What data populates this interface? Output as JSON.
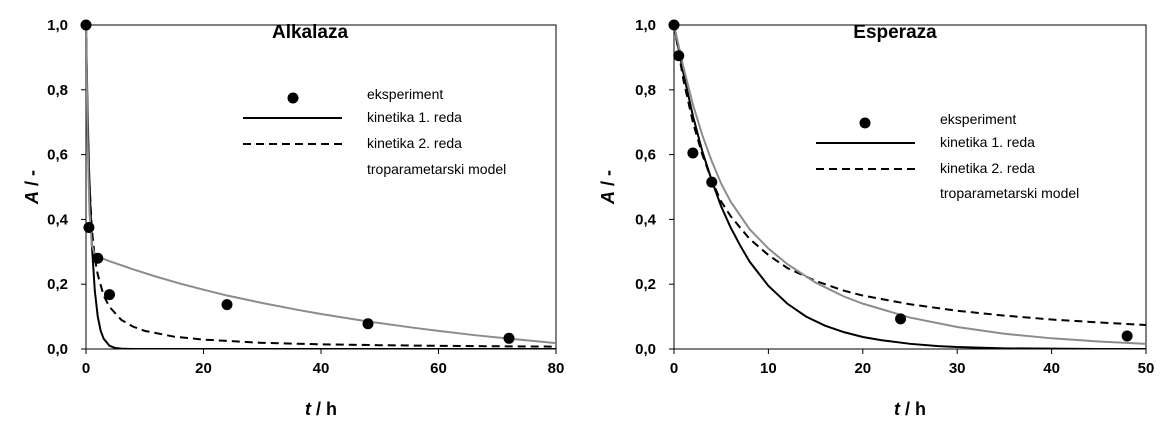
{
  "chart_data": [
    {
      "type": "line",
      "title": "Alkalaza",
      "xlabel_var": "t",
      "xlabel_unit": " / h",
      "ylabel_var": "A",
      "ylabel_unit": " / -",
      "xlim": [
        0,
        80
      ],
      "ylim": [
        0,
        1.0
      ],
      "xticks": [
        0,
        20,
        40,
        60,
        80
      ],
      "yticks": [
        "0,0",
        "0,2",
        "0,4",
        "0,6",
        "0,8",
        "1,0"
      ],
      "ytick_values": [
        0,
        0.2,
        0.4,
        0.6,
        0.8,
        1.0
      ],
      "legend": [
        "eksperiment",
        "kinetika 1. reda",
        "kinetika 2. reda",
        "troparametarski model"
      ],
      "series": [
        {
          "kind": "experiment",
          "style": "marker",
          "color": "#000000",
          "x": [
            0,
            0.5,
            2,
            4,
            24,
            48,
            72
          ],
          "y": [
            1.0,
            0.375,
            0.28,
            0.168,
            0.137,
            0.078,
            0.033
          ]
        },
        {
          "kind": "first-order",
          "style": "solid",
          "color": "#000000",
          "x": [
            0,
            0.25,
            0.5,
            1,
            1.5,
            2,
            2.5,
            3,
            4,
            5,
            6,
            8,
            80
          ],
          "y": [
            1.0,
            0.75,
            0.56,
            0.32,
            0.18,
            0.1,
            0.056,
            0.032,
            0.01,
            0.003,
            0.001,
            0,
            0
          ]
        },
        {
          "kind": "second-order",
          "style": "dashed",
          "color": "#000000",
          "x": [
            0,
            0.25,
            0.5,
            1,
            1.5,
            2,
            3,
            4,
            6,
            8,
            10,
            15,
            20,
            30,
            40,
            50,
            60,
            70,
            80
          ],
          "y": [
            1.0,
            0.7,
            0.54,
            0.37,
            0.28,
            0.23,
            0.165,
            0.13,
            0.09,
            0.069,
            0.056,
            0.038,
            0.029,
            0.019,
            0.0145,
            0.0117,
            0.0098,
            0.0084,
            0.0073
          ]
        },
        {
          "kind": "three-parameter",
          "style": "solid",
          "color": "#8c8c8c",
          "x": [
            0,
            0.3,
            0.6,
            1,
            1.5,
            2,
            4,
            8,
            12,
            16,
            20,
            24,
            30,
            36,
            40,
            48,
            56,
            60,
            66,
            72,
            80
          ],
          "y": [
            1.0,
            0.62,
            0.42,
            0.32,
            0.292,
            0.285,
            0.271,
            0.246,
            0.223,
            0.202,
            0.183,
            0.165,
            0.142,
            0.121,
            0.108,
            0.085,
            0.065,
            0.056,
            0.043,
            0.032,
            0.018
          ]
        }
      ]
    },
    {
      "type": "line",
      "title": "Esperaza",
      "xlabel_var": "t",
      "xlabel_unit": " / h",
      "ylabel_var": "A",
      "ylabel_unit": " / -",
      "xlim": [
        0,
        50
      ],
      "ylim": [
        0,
        1.0
      ],
      "xticks": [
        0,
        10,
        20,
        30,
        40,
        50
      ],
      "yticks": [
        "0,0",
        "0,2",
        "0,4",
        "0,6",
        "0,8",
        "1,0"
      ],
      "ytick_values": [
        0,
        0.2,
        0.4,
        0.6,
        0.8,
        1.0
      ],
      "legend": [
        "eksperiment",
        "kinetika 1. reda",
        "kinetika 2. reda",
        "troparametarski model"
      ],
      "series": [
        {
          "kind": "experiment",
          "style": "marker",
          "color": "#000000",
          "x": [
            0,
            0.5,
            2,
            4,
            24,
            48
          ],
          "y": [
            1.0,
            0.905,
            0.605,
            0.515,
            0.093,
            0.04
          ]
        },
        {
          "kind": "first-order",
          "style": "solid",
          "color": "#000000",
          "x": [
            0,
            1,
            2,
            3,
            4,
            5,
            6,
            7,
            8,
            10,
            12,
            14,
            16,
            18,
            20,
            22,
            25,
            28,
            30,
            35,
            40,
            45,
            50
          ],
          "y": [
            1.0,
            0.85,
            0.72,
            0.61,
            0.52,
            0.44,
            0.375,
            0.32,
            0.27,
            0.195,
            0.14,
            0.1,
            0.072,
            0.052,
            0.037,
            0.027,
            0.016,
            0.009,
            0.006,
            0.002,
            0.001,
            0.0,
            0.0
          ]
        },
        {
          "kind": "second-order",
          "style": "dashed",
          "color": "#000000",
          "x": [
            0,
            1,
            2,
            3,
            4,
            5,
            6,
            8,
            10,
            12,
            15,
            18,
            20,
            25,
            30,
            35,
            40,
            45,
            50
          ],
          "y": [
            1.0,
            0.83,
            0.7,
            0.6,
            0.52,
            0.455,
            0.41,
            0.34,
            0.29,
            0.25,
            0.21,
            0.18,
            0.165,
            0.138,
            0.118,
            0.103,
            0.091,
            0.082,
            0.074
          ]
        },
        {
          "kind": "three-parameter",
          "style": "solid",
          "color": "#8c8c8c",
          "x": [
            0,
            1,
            2,
            3,
            4,
            5,
            6,
            8,
            10,
            12,
            15,
            18,
            20,
            25,
            30,
            35,
            40,
            45,
            50
          ],
          "y": [
            1.0,
            0.87,
            0.755,
            0.66,
            0.58,
            0.51,
            0.455,
            0.37,
            0.31,
            0.262,
            0.205,
            0.162,
            0.14,
            0.097,
            0.068,
            0.047,
            0.033,
            0.023,
            0.016
          ]
        }
      ]
    }
  ]
}
